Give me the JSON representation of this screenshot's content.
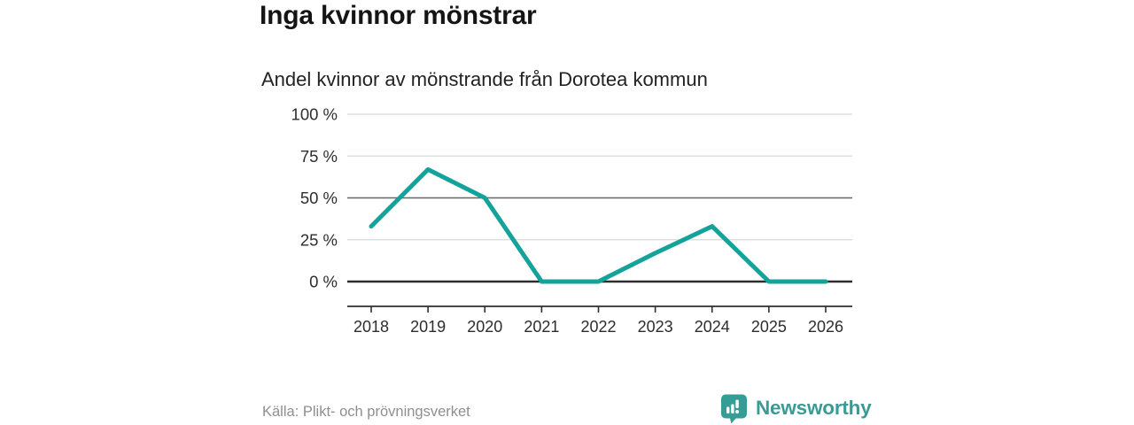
{
  "title": "Inga kvinnor mönstrar",
  "subtitle": "Andel kvinnor av mönstrande från Dorotea kommun",
  "source": "Källa: Plikt- och prövningsverket",
  "branding": {
    "name": "Newsworthy",
    "icon": "speech-bubble-bar-chart",
    "icon_color": "#359d96",
    "text_color": "#3a9a94"
  },
  "colors": {
    "line": "#14a39a",
    "grid_light": "#d9d9d9",
    "grid_mid": "#666666",
    "axis_dark": "#2e2e2e",
    "tick_text": "#2d2d2d"
  },
  "chart_data": {
    "type": "line",
    "x": [
      2018,
      2019,
      2020,
      2021,
      2022,
      2023,
      2024,
      2025,
      2026
    ],
    "series": [
      {
        "name": "Andel kvinnor av mönstrande",
        "values": [
          33,
          67,
          50,
          0,
          0,
          17,
          33,
          0,
          0
        ]
      }
    ],
    "title": "Inga kvinnor mönstrar",
    "subtitle": "Andel kvinnor av mönstrande från Dorotea kommun",
    "xlabel": "",
    "ylabel": "",
    "ylim": [
      0,
      100
    ],
    "yticks": [
      0,
      25,
      50,
      75,
      100
    ],
    "ytick_labels": [
      "0 %",
      "25 %",
      "50 %",
      "75 %",
      "100 %"
    ],
    "emphasized_gridlines": [
      0,
      50
    ],
    "grid": "horizontal",
    "legend": "none"
  }
}
